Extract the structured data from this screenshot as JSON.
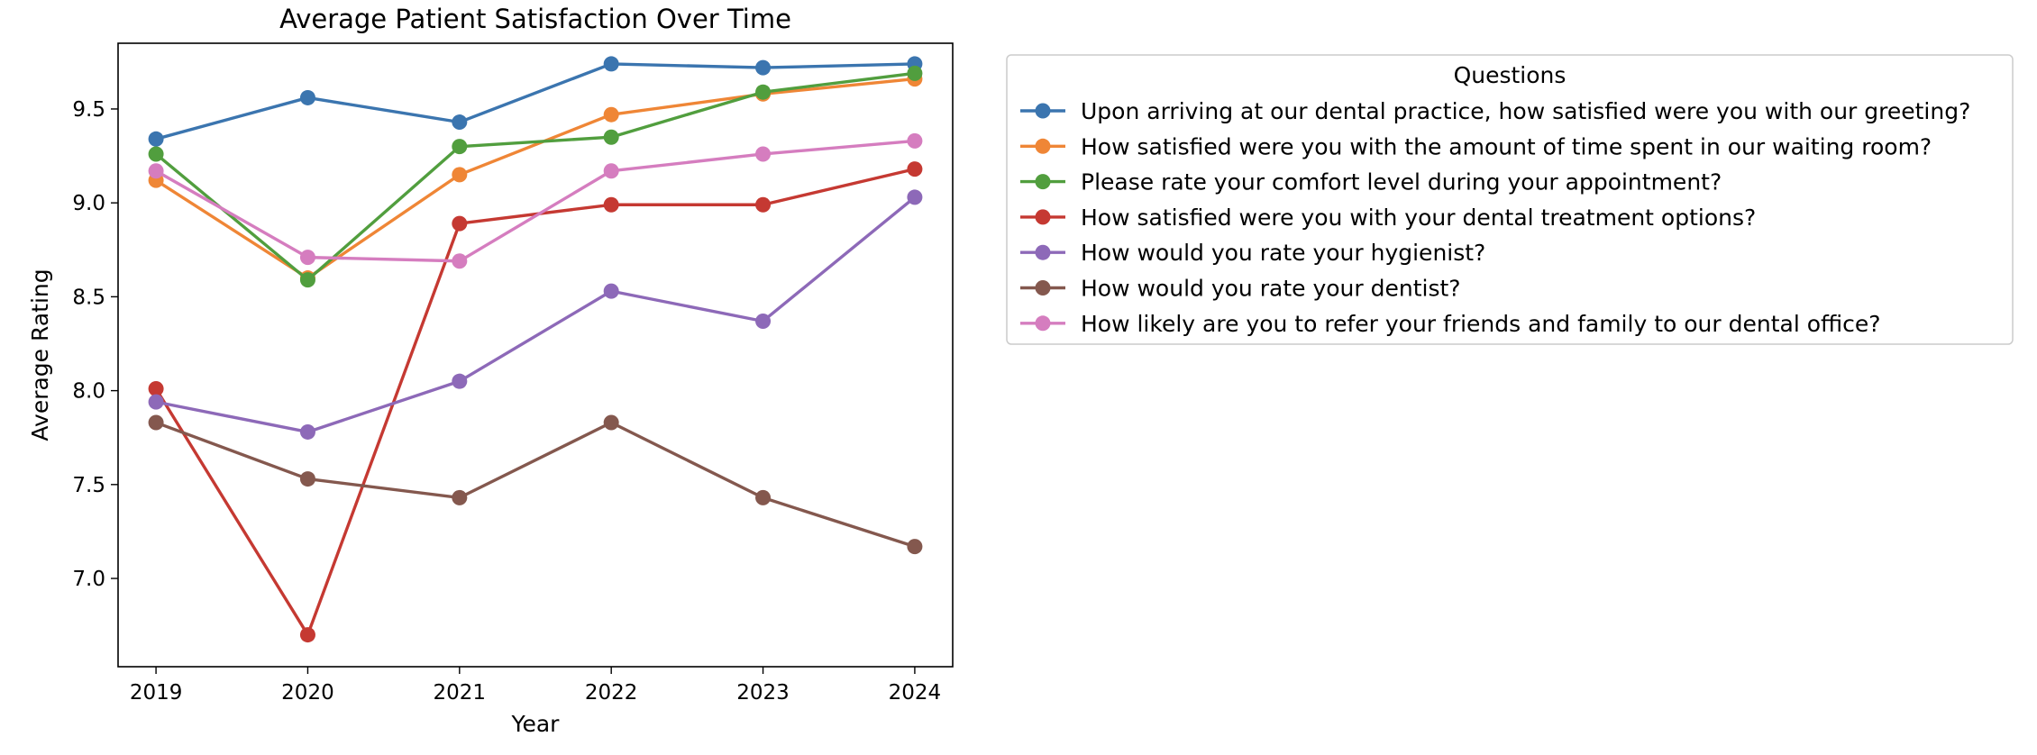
{
  "chart_data": {
    "type": "line",
    "title": "Average Patient Satisfaction Over Time",
    "xlabel": "Year",
    "ylabel": "Average Rating",
    "x": [
      "2019",
      "2020",
      "2021",
      "2022",
      "2023",
      "2024"
    ],
    "xlim": [
      2018.75,
      2024.25
    ],
    "ylim": [
      6.53,
      9.85
    ],
    "yticks": [
      "7.0",
      "7.5",
      "8.0",
      "8.5",
      "9.0",
      "9.5"
    ],
    "grid": false,
    "legend": {
      "title": "Questions",
      "position": "outside-right-top"
    },
    "series": [
      {
        "name": "Upon arriving at our dental practice, how satisfied were you with our greeting?",
        "color": "#3b75af",
        "values": [
          9.34,
          9.56,
          9.43,
          9.74,
          9.72,
          9.74
        ]
      },
      {
        "name": "How satisfied were you with the amount of time spent in our waiting room?",
        "color": "#ef8636",
        "values": [
          9.12,
          8.6,
          9.15,
          9.47,
          9.58,
          9.66
        ]
      },
      {
        "name": "Please rate your comfort level during your appointment?",
        "color": "#519e3e",
        "values": [
          9.26,
          8.59,
          9.3,
          9.35,
          9.59,
          9.69
        ]
      },
      {
        "name": "How satisfied were you with your dental treatment options?",
        "color": "#c53932",
        "values": [
          8.01,
          6.7,
          8.89,
          8.99,
          8.99,
          9.18
        ]
      },
      {
        "name": "How would you rate your hygienist?",
        "color": "#8d69b8",
        "values": [
          7.94,
          7.78,
          8.05,
          8.53,
          8.37,
          9.03
        ]
      },
      {
        "name": "How would you rate your dentist?",
        "color": "#84584e",
        "values": [
          7.83,
          7.53,
          7.43,
          7.83,
          7.43,
          7.17
        ]
      },
      {
        "name": "How likely are you to refer your friends and family to our dental office?",
        "color": "#d57dbf",
        "values": [
          9.17,
          8.71,
          8.69,
          9.17,
          9.26,
          9.33
        ]
      }
    ]
  }
}
